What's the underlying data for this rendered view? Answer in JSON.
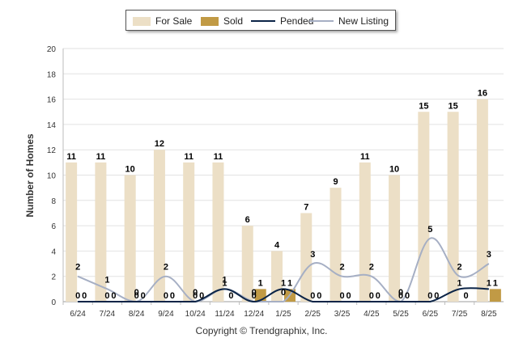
{
  "chart_data": {
    "type": "bar",
    "xlabel": "",
    "ylabel": "Number of Homes",
    "ylim": [
      0,
      20
    ],
    "yticks": [
      0,
      2,
      4,
      6,
      8,
      10,
      12,
      14,
      16,
      18,
      20
    ],
    "grid": true,
    "legend_position": "top-center",
    "categories": [
      "6/24",
      "7/24",
      "8/24",
      "9/24",
      "10/24",
      "11/24",
      "12/24",
      "1/25",
      "2/25",
      "3/25",
      "4/25",
      "5/25",
      "6/25",
      "7/25",
      "8/25"
    ],
    "series": [
      {
        "name": "For Sale",
        "kind": "bar",
        "color": "#ecdfc6",
        "values": [
          11,
          11,
          10,
          12,
          11,
          11,
          6,
          4,
          7,
          9,
          11,
          10,
          15,
          15,
          16
        ]
      },
      {
        "name": "Sold",
        "kind": "bar",
        "color": "#c19a45",
        "values": [
          0,
          0,
          0,
          0,
          0,
          0,
          1,
          1,
          0,
          0,
          0,
          0,
          0,
          0,
          1
        ]
      },
      {
        "name": "Pended",
        "kind": "line",
        "color": "#0b2447",
        "values": [
          0,
          0,
          0,
          0,
          0,
          1,
          0,
          1,
          0,
          0,
          0,
          0,
          0,
          1,
          1
        ]
      },
      {
        "name": "New Listing",
        "kind": "line",
        "color": "#a6afc4",
        "values": [
          2,
          1,
          0,
          2,
          0,
          1,
          0,
          0,
          3,
          2,
          2,
          0,
          5,
          2,
          3
        ]
      }
    ]
  },
  "footer": {
    "copyright": "Copyright © Trendgraphix, Inc."
  }
}
